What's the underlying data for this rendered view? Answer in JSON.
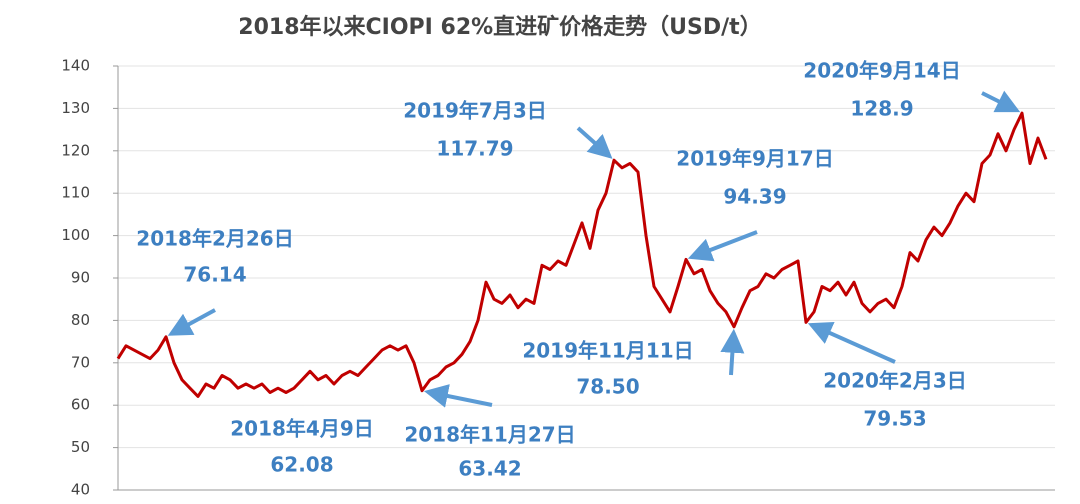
{
  "chart_data": {
    "type": "line",
    "title": "2018年以来CIOPI 62%直进矿价格走势（USD/t）",
    "values": [
      71,
      74,
      73,
      72,
      71,
      73,
      76.14,
      70,
      66,
      64,
      62.08,
      65,
      64,
      67,
      66,
      64,
      65,
      64,
      65,
      63,
      64,
      63,
      64,
      66,
      68,
      66,
      67,
      65,
      67,
      68,
      67,
      69,
      71,
      73,
      74,
      73,
      74,
      70,
      63.42,
      66,
      67,
      69,
      70,
      72,
      75,
      80,
      89,
      85,
      84,
      86,
      83,
      85,
      84,
      93,
      92,
      94,
      93,
      98,
      103,
      97,
      106,
      110,
      117.79,
      116,
      117,
      115,
      100,
      88,
      85,
      82,
      88,
      94.39,
      91,
      92,
      87,
      84,
      82,
      78.5,
      83,
      87,
      88,
      91,
      90,
      92,
      93,
      94,
      79.53,
      82,
      88,
      87,
      89,
      86,
      89,
      84,
      82,
      84,
      85,
      83,
      88,
      96,
      94,
      99,
      102,
      100,
      103,
      107,
      110,
      108,
      117,
      119,
      124,
      120,
      125,
      128.9,
      117,
      123,
      118
    ],
    "color": "#c00000",
    "ylim": [
      40,
      140
    ],
    "yticks": [
      40,
      50,
      60,
      70,
      80,
      90,
      100,
      110,
      120,
      130,
      140
    ],
    "grid": true,
    "annotations": [
      {
        "text": "2018年2月26日",
        "value": 76.14
      },
      {
        "text": "2018年4月9日",
        "value": 62.08
      },
      {
        "text": "2018年11月27日",
        "value": 63.42
      },
      {
        "text": "2019年7月3日",
        "value": 117.79
      },
      {
        "text": "2019年9月17日",
        "value": 94.39
      },
      {
        "text": "2019年11月11日",
        "value": 78.5,
        "value_label": "78.50"
      },
      {
        "text": "2020年2月3日",
        "value": 79.53
      },
      {
        "text": "2020年9月14日",
        "value": 128.9
      }
    ]
  }
}
